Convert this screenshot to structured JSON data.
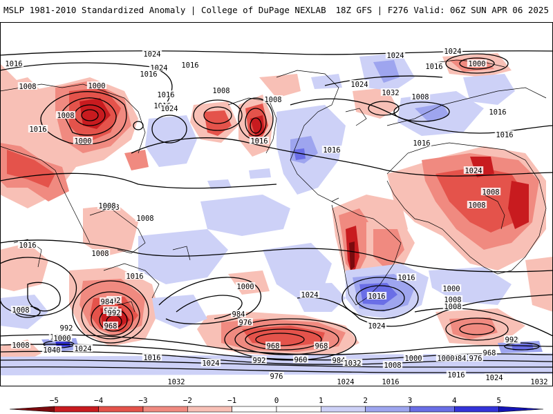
{
  "header": {
    "left": "MSLP 1981-2010 Standardized Anomaly | College of DuPage NEXLAB",
    "right": "18Z GFS | F276 Valid: 06Z SUN APR 06 2025"
  },
  "colors": {
    "neg5": "#7a0a0e",
    "neg4": "#c81b1f",
    "neg3": "#e4534b",
    "neg2": "#f08a80",
    "neg1": "#f8c0b6",
    "zero": "#ffffff",
    "pos1": "#cdd1f7",
    "pos2": "#9ea5ef",
    "pos3": "#6a6ee6",
    "pos4": "#3433d9",
    "pos5": "#1515b5",
    "land_line": "#000000",
    "isobar": "#000000"
  },
  "colorbar": {
    "ticks": [
      "−5",
      "−4",
      "−3",
      "−2",
      "−1",
      "0",
      "1",
      "2",
      "3",
      "4",
      "5"
    ],
    "values": [
      -5,
      -4,
      -3,
      -2,
      -1,
      0,
      1,
      2,
      3,
      4,
      5
    ]
  },
  "isobar_labels": [
    "1024",
    "1016",
    "1008",
    "1000",
    "1024",
    "1016",
    "1008",
    "1016",
    "1008",
    "1016",
    "1016",
    "1016",
    "1024",
    "1016",
    "1024",
    "1000",
    "1024",
    "1032",
    "1008",
    "1024",
    "1016",
    "1008",
    "1008",
    "1016",
    "1008",
    "1008",
    "1008",
    "1016",
    "1016",
    "1016",
    "1016",
    "1008",
    "1024",
    "1008",
    "1000",
    "992",
    "984",
    "976",
    "968",
    "1032",
    "1000",
    "992",
    "1008",
    "1040",
    "1024",
    "1016",
    "1024",
    "1016",
    "1008",
    "992",
    "1000",
    "984",
    "976",
    "968",
    "960",
    "984",
    "968",
    "976",
    "992",
    "1000",
    "1008",
    "1024",
    "1032",
    "1016",
    "1024",
    "1000",
    "1008",
    "1008",
    "1016",
    "992",
    "984",
    "976",
    "968",
    "1000",
    "992",
    "1016",
    "1024",
    "1032",
    "1024",
    "1032",
    "1016"
  ]
}
